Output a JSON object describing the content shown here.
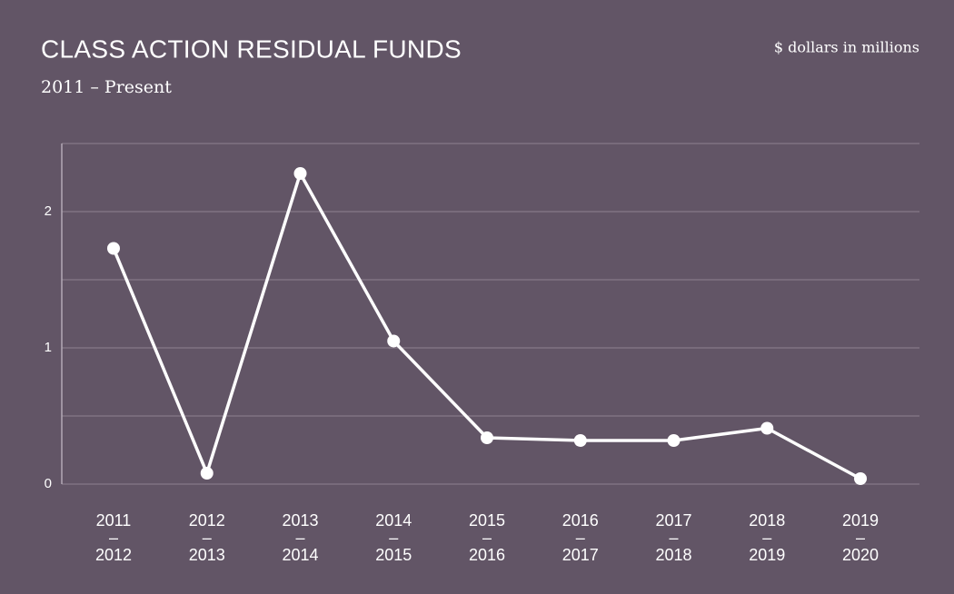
{
  "chart_data": {
    "type": "line",
    "title": "CLASS ACTION RESIDUAL FUNDS",
    "subtitle": "2011 – Present",
    "unit_label": "$ dollars in millions",
    "categories": [
      [
        "2011",
        "–",
        "2012"
      ],
      [
        "2012",
        "–",
        "2013"
      ],
      [
        "2013",
        "–",
        "2014"
      ],
      [
        "2014",
        "–",
        "2015"
      ],
      [
        "2015",
        "–",
        "2016"
      ],
      [
        "2016",
        "–",
        "2017"
      ],
      [
        "2017",
        "–",
        "2018"
      ],
      [
        "2018",
        "–",
        "2019"
      ],
      [
        "2019",
        "–",
        "2020"
      ]
    ],
    "values": [
      1.73,
      0.08,
      2.28,
      1.05,
      0.34,
      0.32,
      0.32,
      0.41,
      0.04
    ],
    "color": "#ffffff",
    "ylim": [
      0,
      2.5
    ],
    "yticks": [
      0,
      1,
      2
    ],
    "yminorticks": [
      0.5,
      1.5,
      2.5
    ],
    "grid": true
  }
}
